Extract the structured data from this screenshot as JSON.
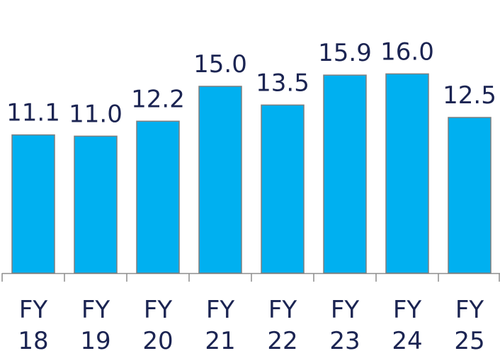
{
  "chart_data": {
    "type": "bar",
    "categories": [
      "FY 18",
      "FY 19",
      "FY 20",
      "FY 21",
      "FY 22",
      "FY 23",
      "FY 24",
      "FY 25"
    ],
    "values": [
      11.1,
      11.0,
      12.2,
      15.0,
      13.5,
      15.9,
      16.0,
      12.5
    ],
    "value_labels": [
      "11.1",
      "11.0",
      "12.2",
      "15.0",
      "13.5",
      "15.9",
      "16.0",
      "12.5"
    ],
    "color": "#00b0f0"
  }
}
